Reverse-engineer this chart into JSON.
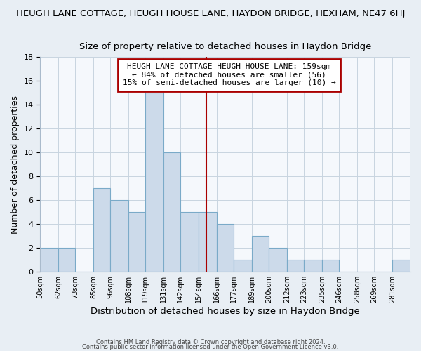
{
  "title": "HEUGH LANE COTTAGE, HEUGH HOUSE LANE, HAYDON BRIDGE, HEXHAM, NE47 6HJ",
  "subtitle": "Size of property relative to detached houses in Haydon Bridge",
  "xlabel": "Distribution of detached houses by size in Haydon Bridge",
  "ylabel": "Number of detached properties",
  "bar_edges": [
    50,
    62,
    73,
    85,
    96,
    108,
    119,
    131,
    142,
    154,
    166,
    177,
    189,
    200,
    212,
    223,
    235,
    246,
    258,
    269,
    281,
    293
  ],
  "bar_heights": [
    2,
    2,
    0,
    7,
    6,
    5,
    15,
    10,
    5,
    5,
    4,
    1,
    3,
    2,
    1,
    1,
    1,
    0,
    0,
    0,
    1
  ],
  "bar_color": "#ccdaea",
  "bar_edgecolor": "#7aaac8",
  "vline_x": 159,
  "vline_color": "#aa0000",
  "ylim": [
    0,
    18
  ],
  "yticks": [
    0,
    2,
    4,
    6,
    8,
    10,
    12,
    14,
    16,
    18
  ],
  "x_tick_labels": [
    "50sqm",
    "62sqm",
    "73sqm",
    "85sqm",
    "96sqm",
    "108sqm",
    "119sqm",
    "131sqm",
    "142sqm",
    "154sqm",
    "166sqm",
    "177sqm",
    "189sqm",
    "200sqm",
    "212sqm",
    "223sqm",
    "235sqm",
    "246sqm",
    "258sqm",
    "269sqm",
    "281sqm"
  ],
  "annotation_title": "HEUGH LANE COTTAGE HEUGH HOUSE LANE: 159sqm",
  "annotation_line1": "← 84% of detached houses are smaller (56)",
  "annotation_line2": "15% of semi-detached houses are larger (10) →",
  "footer1": "Contains HM Land Registry data © Crown copyright and database right 2024.",
  "footer2": "Contains public sector information licensed under the Open Government Licence v3.0.",
  "background_color": "#e8eef4",
  "plot_background": "#f5f8fc",
  "grid_color": "#c8d4e0",
  "title_fontsize": 9.5,
  "subtitle_fontsize": 9.5,
  "xlabel_fontsize": 9.5,
  "ylabel_fontsize": 9
}
